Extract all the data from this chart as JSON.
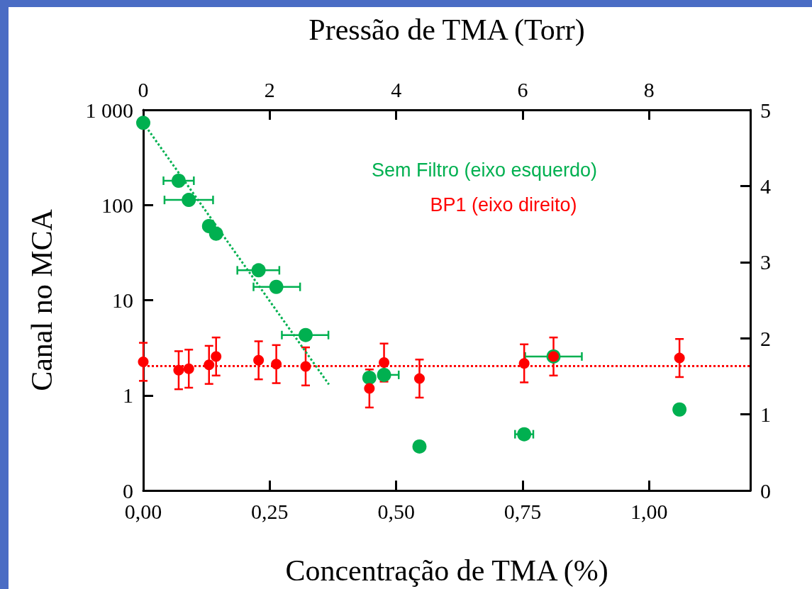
{
  "chart_data": {
    "type": "scatter",
    "xlabel": "Concentração de TMA (%)",
    "x2label": "Pressão de TMA (Torr)",
    "ylabel": "Canal no MCA",
    "xlim": [
      0,
      1.2
    ],
    "xticks": [
      {
        "value": 0,
        "label": "0,00"
      },
      {
        "value": 0.25,
        "label": "0,25"
      },
      {
        "value": 0.5,
        "label": "0,50"
      },
      {
        "value": 0.75,
        "label": "0,75"
      },
      {
        "value": 1,
        "label": "1,00"
      }
    ],
    "x2lim": [
      0,
      9.6
    ],
    "x2ticks": [
      0,
      2,
      4,
      6,
      8
    ],
    "ylim": [
      0.1,
      1000
    ],
    "yticks": [
      {
        "value": 0.1,
        "label": "0"
      },
      1,
      10,
      100,
      {
        "value": 1000,
        "label": "1 000"
      }
    ],
    "log": "y",
    "y2lim": [
      0,
      5
    ],
    "y2ticks": [
      0,
      1,
      2,
      3,
      4,
      5
    ],
    "legend": false,
    "grid": false,
    "marker": "circle",
    "series": [
      {
        "name": "Sem Filtro (eixo esquerdo)",
        "color": "#00b050",
        "x": [
          0,
          0.07,
          0.09,
          0.13,
          0.144,
          0.228,
          0.263,
          0.321,
          0.447,
          0.476,
          0.546,
          0.753,
          0.811,
          1.06
        ],
        "values": [
          730,
          180,
          113,
          60,
          50,
          20.6,
          13.8,
          4.3,
          1.53,
          1.64,
          0.29,
          0.39,
          2.56,
          0.71
        ],
        "xerrors": [
          null,
          0.03,
          [
            0.042,
            0.138
          ],
          0.006,
          null,
          [
            0.186,
            0.269
          ],
          [
            0.218,
            0.31
          ],
          [
            0.274,
            0.366
          ],
          null,
          [
            0.476,
            0.505
          ],
          null,
          0.018,
          0.056,
          null
        ]
      },
      {
        "name": "BP1 (eixo direito)",
        "color": "#ff0000",
        "axis": "y2",
        "x": [
          0,
          0.07,
          0.09,
          0.13,
          0.144,
          0.228,
          0.263,
          0.321,
          0.447,
          0.476,
          0.546,
          0.753,
          0.811,
          1.06
        ],
        "values": [
          1.69,
          1.58,
          1.6,
          1.65,
          1.76,
          1.71,
          1.66,
          1.63,
          1.34,
          1.68,
          1.47,
          1.67,
          1.76,
          1.74
        ],
        "errors": [
          0.25,
          0.25,
          0.25,
          0.25,
          0.25,
          0.25,
          0.25,
          0.25,
          0.25,
          0.25,
          0.25,
          0.25,
          0.25,
          0.25
        ]
      },
      {
        "type": "line",
        "color": "#00b050",
        "line_style": "dotted",
        "marker": "none",
        "x": [
          0,
          0.367
        ],
        "values": [
          730,
          1.3
        ]
      }
    ],
    "ref_lines": [
      {
        "axis": "y2",
        "value": 1.64,
        "color": "#ff0000",
        "line_style": "dotted"
      }
    ]
  }
}
